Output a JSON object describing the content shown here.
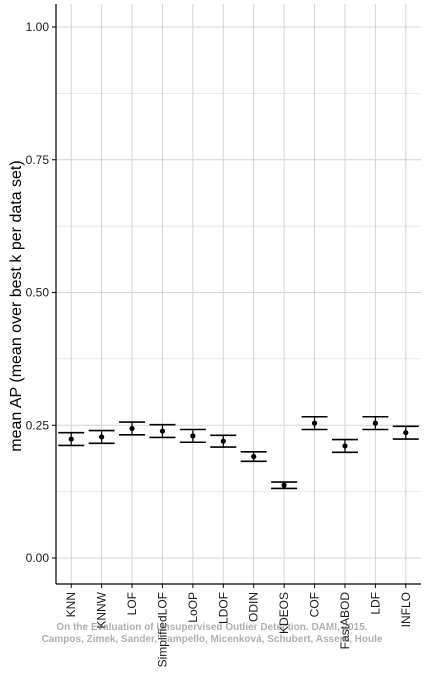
{
  "chart_data": {
    "type": "scatter",
    "ylabel": "mean AP (mean over best k per data set)",
    "ylim": [
      0,
      1.05
    ],
    "y_ticks": [
      0.0,
      0.25,
      0.5,
      0.75,
      1.0
    ],
    "y_tick_labels": [
      "0.00",
      "0.25",
      "0.50",
      "0.75",
      "1.00"
    ],
    "grid": true,
    "categories": [
      "KNN",
      "KNNW",
      "LOF",
      "SimplifiedLOF",
      "LoOP",
      "LDOF",
      "ODIN",
      "KDEOS",
      "COF",
      "FastABOD",
      "LDF",
      "INFLO"
    ],
    "series": [
      {
        "mean": [
          0.224,
          0.228,
          0.244,
          0.239,
          0.23,
          0.22,
          0.191,
          0.137,
          0.254,
          0.211,
          0.254,
          0.236
        ],
        "lower": [
          0.212,
          0.216,
          0.232,
          0.227,
          0.218,
          0.209,
          0.182,
          0.131,
          0.242,
          0.199,
          0.242,
          0.224
        ],
        "upper": [
          0.236,
          0.24,
          0.256,
          0.251,
          0.242,
          0.231,
          0.2,
          0.143,
          0.266,
          0.223,
          0.266,
          0.248
        ]
      }
    ]
  },
  "watermark": {
    "line1": "On the Evaluation of Unsupervised Outlier Detection. DAMI, 2015.",
    "line2": "Campos, Zimek, Sander, Campello, Micenková, Schubert, Assent, Houle"
  },
  "colors": {
    "grid": "#d4d4d4",
    "axis": "#000000",
    "marker": "#000000"
  }
}
